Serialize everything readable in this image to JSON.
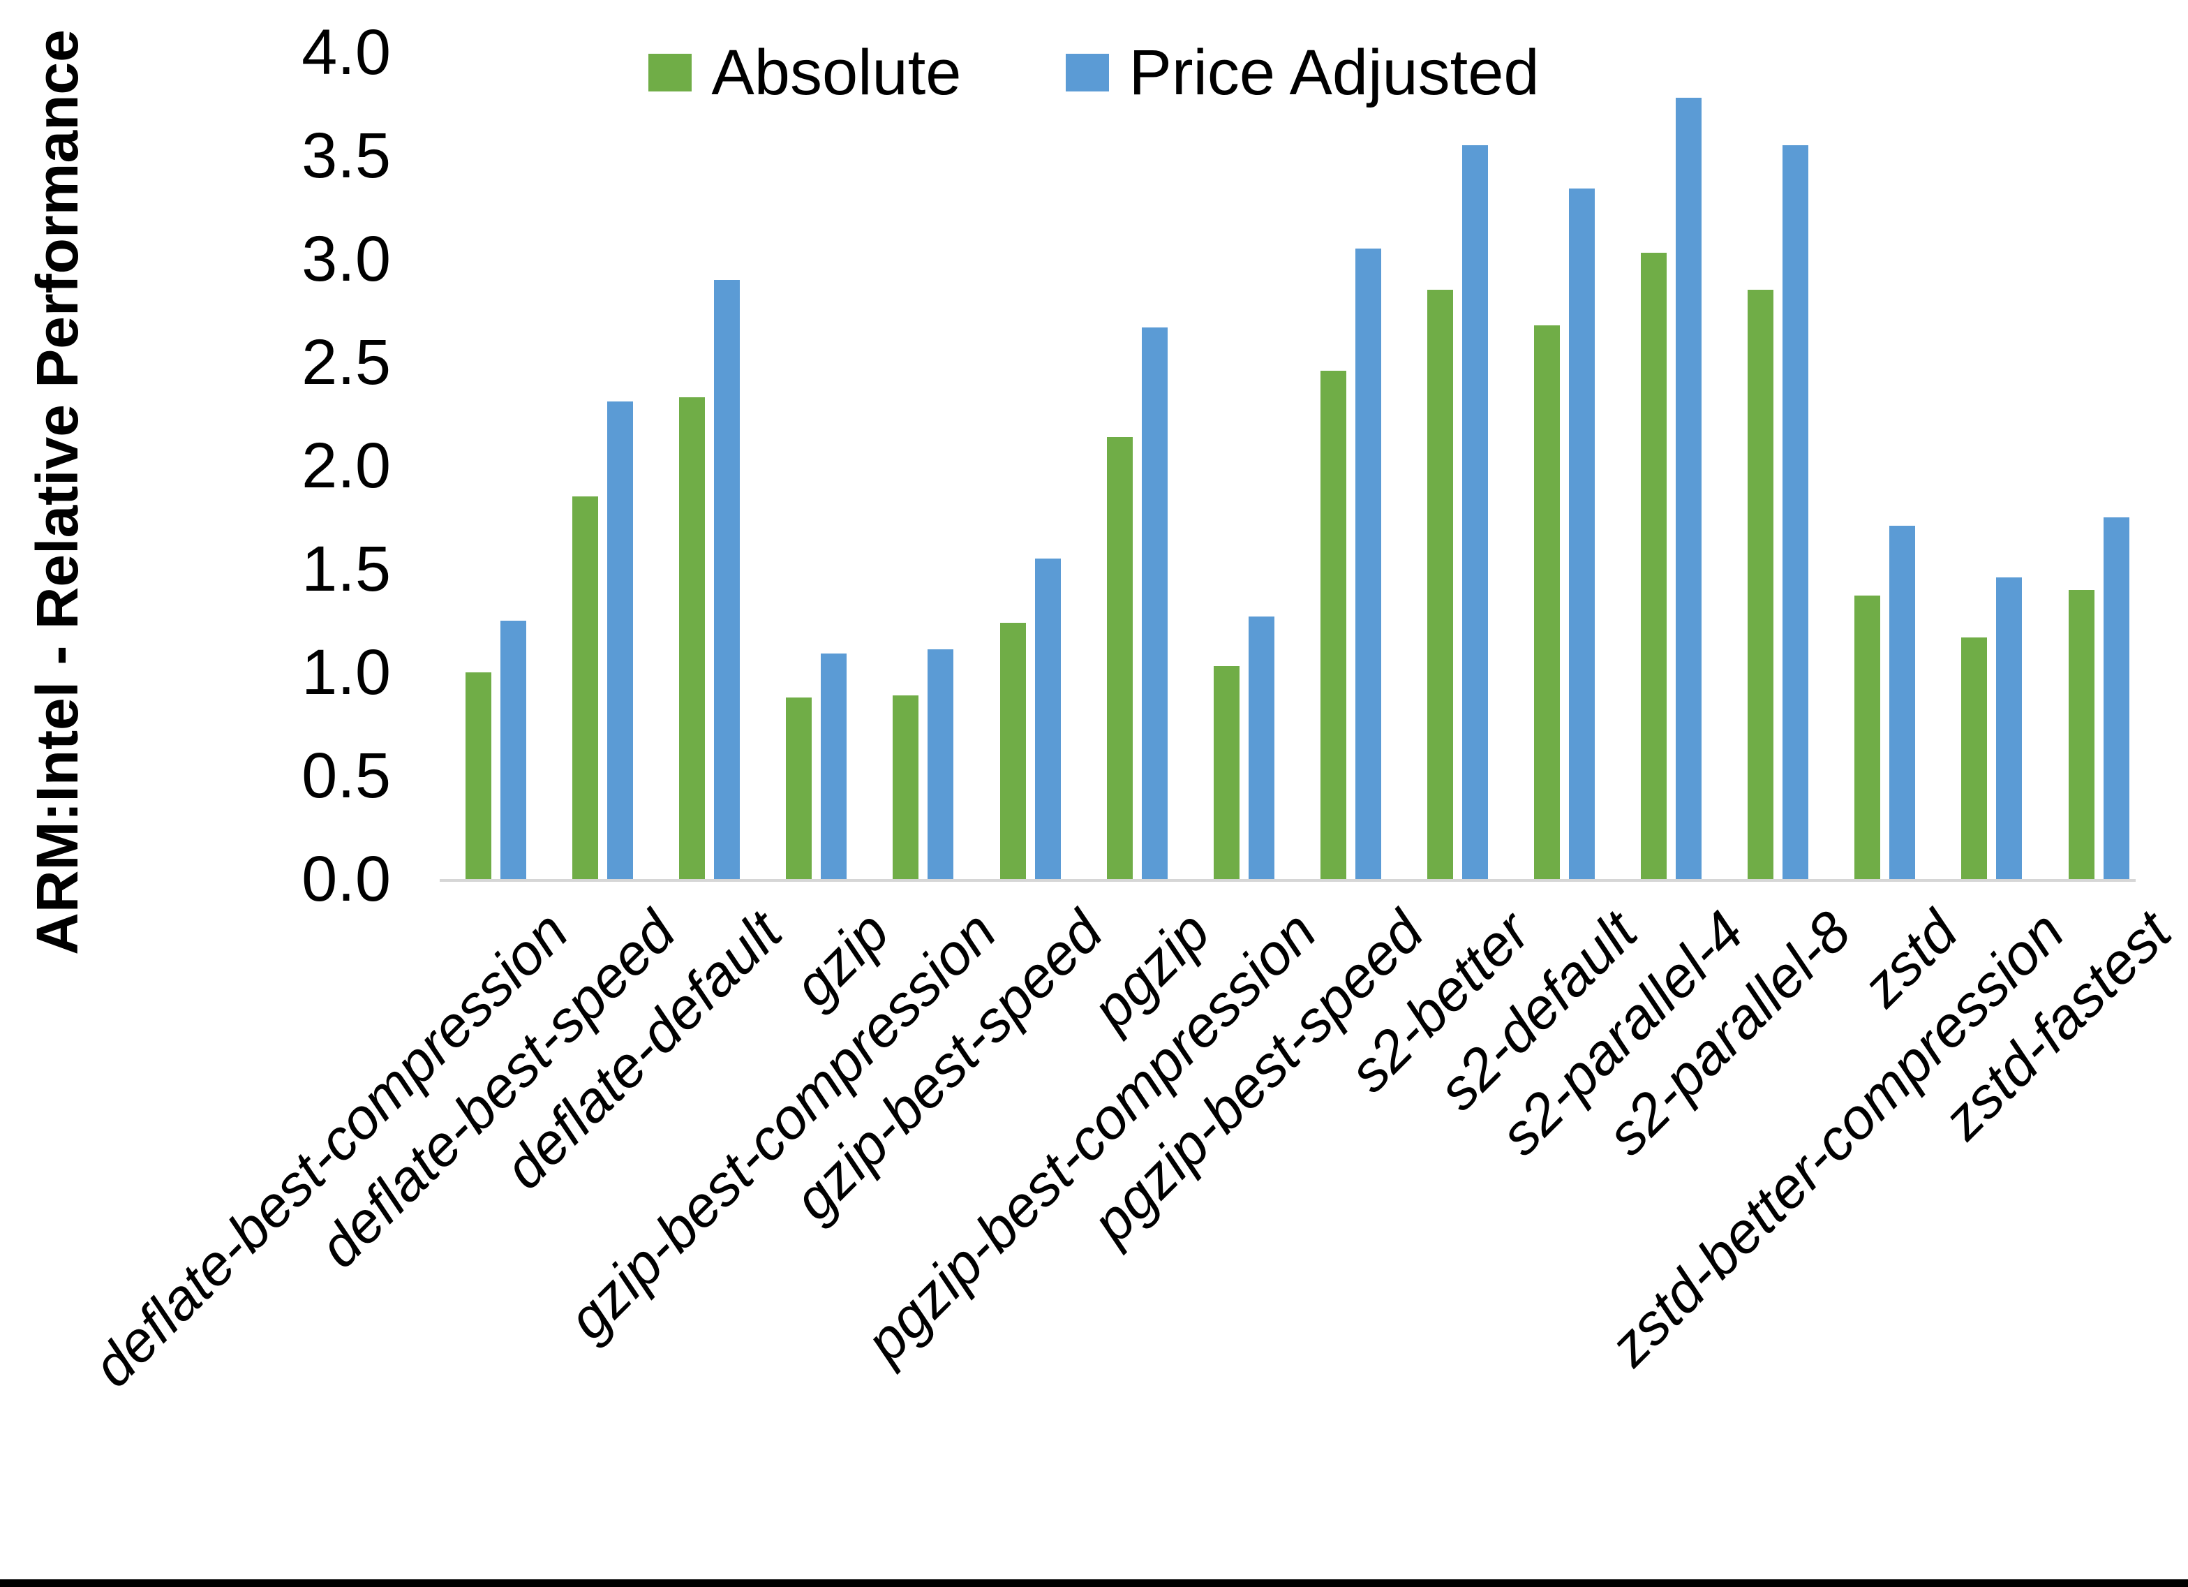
{
  "chart_data": {
    "type": "bar",
    "title": "",
    "ylabel": "ARM:Intel - Relative Performance",
    "xlabel": "",
    "ylim": [
      0.0,
      4.0
    ],
    "ytick_step": 0.5,
    "y_ticks": [
      "0.0",
      "0.5",
      "1.0",
      "1.5",
      "2.0",
      "2.5",
      "3.0",
      "3.5",
      "4.0"
    ],
    "grid": false,
    "legend_position": "top-center",
    "categories": [
      "deflate-best-compression",
      "deflate-best-speed",
      "deflate-default",
      "gzip",
      "gzip-best-compression",
      "gzip-best-speed",
      "pgzip",
      "pgzip-best-compression",
      "pgzip-best-speed",
      "s2-better",
      "s2-default",
      "s2-parallel-4",
      "s2-parallel-8",
      "zstd",
      "zstd-better-compression",
      "zstd-fastest"
    ],
    "series": [
      {
        "name": "Absolute",
        "color": "#70AD47",
        "values": [
          1.0,
          1.85,
          2.33,
          0.88,
          0.89,
          1.24,
          2.14,
          1.03,
          2.46,
          2.85,
          2.68,
          3.03,
          2.85,
          1.37,
          1.17,
          1.4
        ]
      },
      {
        "name": "Price Adjusted",
        "color": "#5B9BD5",
        "values": [
          1.25,
          2.31,
          2.9,
          1.09,
          1.11,
          1.55,
          2.67,
          1.27,
          3.05,
          3.55,
          3.34,
          3.78,
          3.55,
          1.71,
          1.46,
          1.75
        ]
      }
    ]
  }
}
